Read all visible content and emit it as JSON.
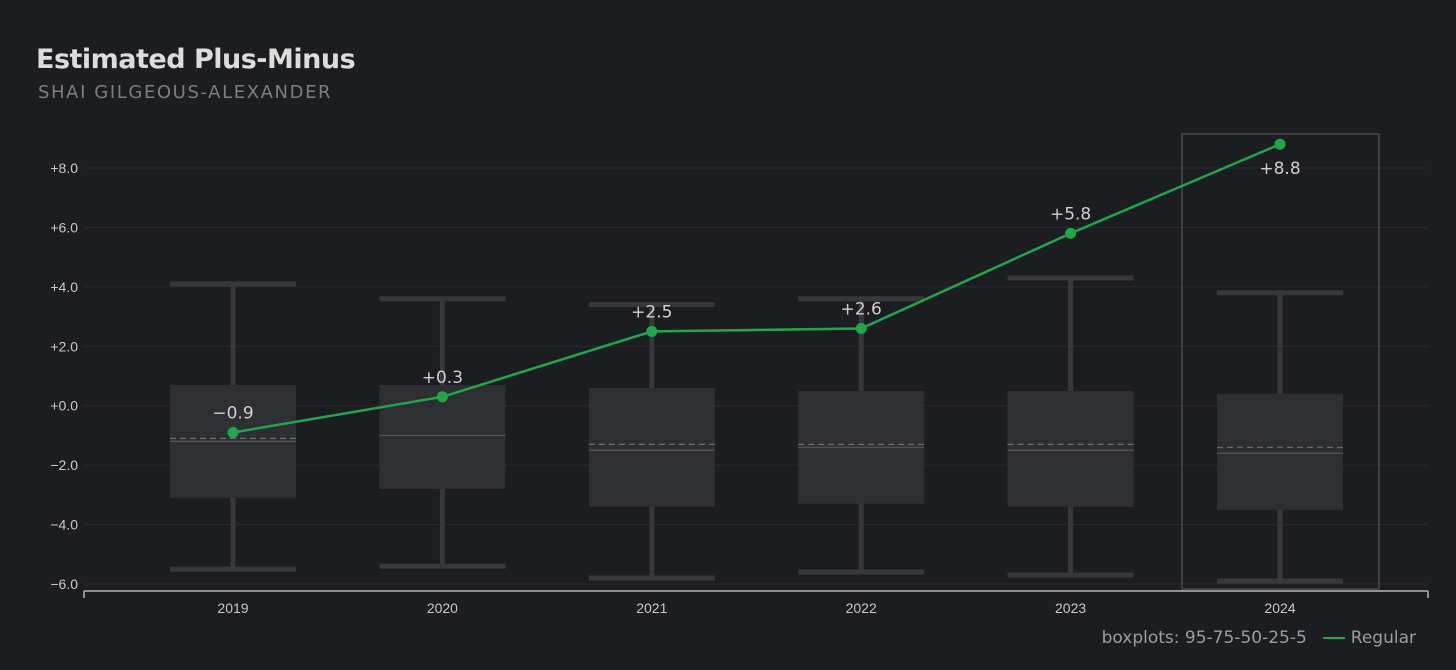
{
  "header": {
    "title": "Estimated Plus-Minus",
    "subtitle": "SHAI GILGEOUS-ALEXANDER"
  },
  "legend": {
    "boxplot_note": "boxplots: 95-75-50-25-5",
    "series_label": "Regular"
  },
  "colors": {
    "background": "#1c1d21",
    "line": "#1fa84a",
    "box_fill": "#2e2f33",
    "whisker": "#37383c",
    "grid": "#2a2b2f"
  },
  "chart_data": {
    "type": "line",
    "overlay": "boxplot",
    "categories": [
      "2019",
      "2020",
      "2021",
      "2022",
      "2023",
      "2024"
    ],
    "ylim": [
      -6,
      9.2
    ],
    "yticks": [
      8,
      6,
      4,
      2,
      0,
      -2,
      -4,
      -6
    ],
    "ytick_labels": [
      "+8.0",
      "+6.0",
      "+4.0",
      "+2.0",
      "+0.0",
      "−2.0",
      "−4.0",
      "−6.0"
    ],
    "grid": true,
    "highlighted_category": "2024",
    "series": [
      {
        "name": "Regular",
        "values": [
          -0.9,
          0.3,
          2.5,
          2.6,
          5.8,
          8.8
        ],
        "labels": [
          "−0.9",
          "+0.3",
          "+2.5",
          "+2.6",
          "+5.8",
          "+8.8"
        ]
      }
    ],
    "boxplots": [
      {
        "category": "2019",
        "p95": 4.1,
        "p75": 0.7,
        "p50": -1.2,
        "mean": -1.1,
        "p25": -3.1,
        "p5": -5.5
      },
      {
        "category": "2020",
        "p95": 3.6,
        "p75": 0.7,
        "p50": -1.0,
        "mean": -1.0,
        "p25": -2.8,
        "p5": -5.4
      },
      {
        "category": "2021",
        "p95": 3.4,
        "p75": 0.6,
        "p50": -1.5,
        "mean": -1.3,
        "p25": -3.4,
        "p5": -5.8
      },
      {
        "category": "2022",
        "p95": 3.6,
        "p75": 0.5,
        "p50": -1.4,
        "mean": -1.3,
        "p25": -3.3,
        "p5": -5.6
      },
      {
        "category": "2023",
        "p95": 4.3,
        "p75": 0.5,
        "p50": -1.5,
        "mean": -1.3,
        "p25": -3.4,
        "p5": -5.7
      },
      {
        "category": "2024",
        "p95": 3.8,
        "p75": 0.4,
        "p50": -1.6,
        "mean": -1.4,
        "p25": -3.5,
        "p5": -5.9
      }
    ]
  }
}
